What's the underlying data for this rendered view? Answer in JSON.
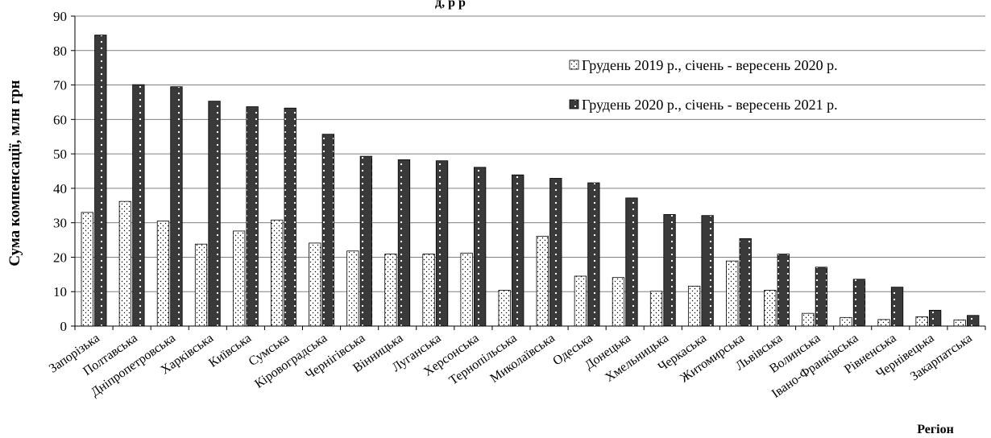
{
  "chart_data": {
    "type": "bar",
    "title_partial": "д, р        р",
    "ylabel": "Сума компенсації, млн грн",
    "xlabel": "Регіон",
    "ylim": [
      0,
      90
    ],
    "yticks": [
      0,
      10,
      20,
      30,
      40,
      50,
      60,
      70,
      80,
      90
    ],
    "grid": true,
    "legend_position": "top-right",
    "categories": [
      "Запорізька",
      "Полтавська",
      "Дніпропетровська",
      "Харківська",
      "Київська",
      "Сумська",
      "Кіровоградська",
      "Чернігівська",
      "Вінницька",
      "Луганська",
      "Херсонська",
      "Тернопільська",
      "Миколаївська",
      "Одеська",
      "Донецька",
      "Хмельницька",
      "Черкаська",
      "Житомирська",
      "Львівська",
      "Волинська",
      "Івано-Франківська",
      "Рівненська",
      "Чернівецька",
      "Закарпатська"
    ],
    "series": [
      {
        "name": "Грудень 2019 р., січень - вересень 2020 р.",
        "pattern": "dots",
        "color": "#ffffff",
        "values": [
          33.0,
          36.2,
          30.5,
          23.8,
          27.6,
          30.8,
          24.1,
          21.8,
          20.9,
          20.9,
          21.2,
          10.4,
          26.1,
          14.5,
          14.1,
          10.1,
          11.6,
          18.9,
          10.4,
          3.7,
          2.5,
          1.9,
          2.7,
          1.8
        ]
      },
      {
        "name": "Грудень 2020 р., січень - вересень 2021 р.",
        "pattern": "dark-dotted",
        "color": "#3a3a3a",
        "values": [
          84.5,
          70.1,
          69.5,
          65.3,
          63.7,
          63.3,
          55.7,
          49.3,
          48.3,
          48.0,
          46.1,
          43.9,
          42.9,
          41.6,
          37.2,
          32.4,
          32.1,
          25.4,
          20.9,
          17.1,
          13.6,
          11.3,
          4.6,
          3.1
        ]
      }
    ]
  }
}
